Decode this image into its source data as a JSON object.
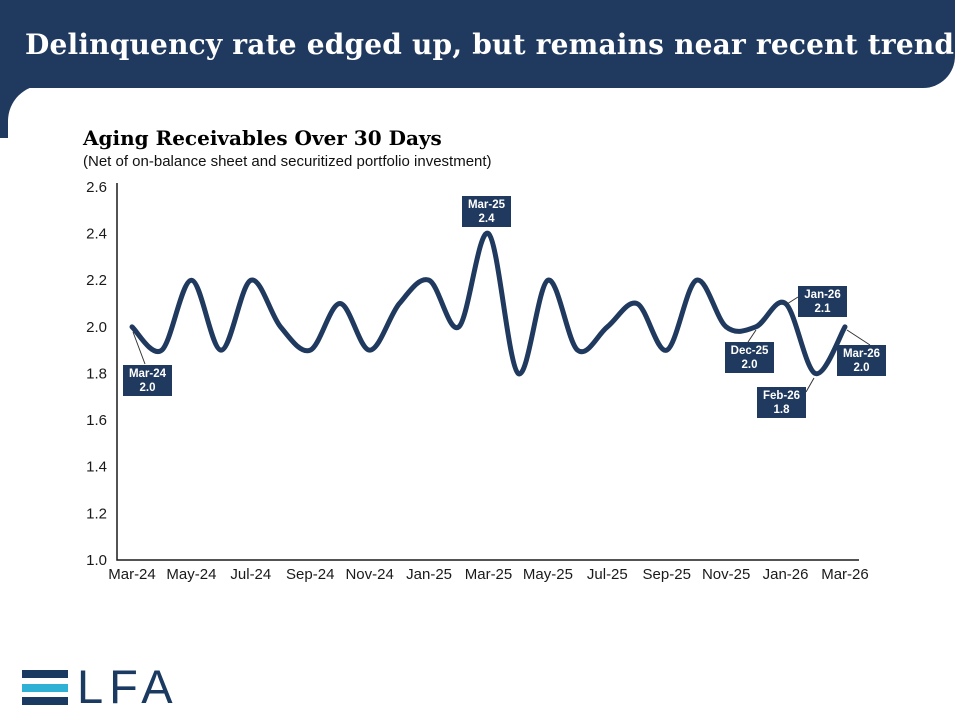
{
  "header": {
    "title": "Delinquency rate edged up, but remains near recent trend"
  },
  "chart_data": {
    "type": "line",
    "title": "Aging Receivables Over 30 Days",
    "subtitle": "(Net of on-balance sheet and securitized portfolio investment)",
    "xlabel": "",
    "ylabel": "",
    "grid": false,
    "legend": "none",
    "ylim": [
      1.0,
      2.6
    ],
    "ytick_labels": [
      "2.6",
      "2.4",
      "2.2",
      "2.0",
      "1.8",
      "1.6",
      "1.4",
      "1.2",
      "1.0"
    ],
    "xtick_labels": [
      "Mar-24",
      "May-24",
      "Jul-24",
      "Sep-24",
      "Nov-24",
      "Jan-25",
      "Mar-25",
      "May-25",
      "Jul-25",
      "Sep-25",
      "Nov-25",
      "Jan-26",
      "Mar-26"
    ],
    "x": [
      "Mar-24",
      "Apr-24",
      "May-24",
      "Jun-24",
      "Jul-24",
      "Aug-24",
      "Sep-24",
      "Oct-24",
      "Nov-24",
      "Dec-24",
      "Jan-25",
      "Feb-25",
      "Mar-25",
      "Apr-25",
      "May-25",
      "Jun-25",
      "Jul-25",
      "Aug-25",
      "Sep-25",
      "Oct-25",
      "Nov-25",
      "Dec-25",
      "Jan-26",
      "Feb-26",
      "Mar-26"
    ],
    "values": [
      2.0,
      1.9,
      2.2,
      1.9,
      2.2,
      2.0,
      1.9,
      2.1,
      1.9,
      2.1,
      2.2,
      2.0,
      2.4,
      1.8,
      2.2,
      1.9,
      2.0,
      2.1,
      1.9,
      2.2,
      2.0,
      2.0,
      2.1,
      1.8,
      2.0
    ],
    "line_color": "#20395e",
    "callouts": [
      {
        "month": "Mar-24",
        "value": "2.0"
      },
      {
        "month": "Mar-25",
        "value": "2.4"
      },
      {
        "month": "Dec-25",
        "value": "2.0"
      },
      {
        "month": "Jan-26",
        "value": "2.1"
      },
      {
        "month": "Feb-26",
        "value": "1.8"
      },
      {
        "month": "Mar-26",
        "value": "2.0"
      }
    ]
  },
  "logo": {
    "letters": "LFA",
    "navy": "#1b3a61",
    "cyan": "#2fb0d5"
  },
  "colors": {
    "banner": "#20395e",
    "axis": "#1a1a1a",
    "leader": "#333333"
  }
}
